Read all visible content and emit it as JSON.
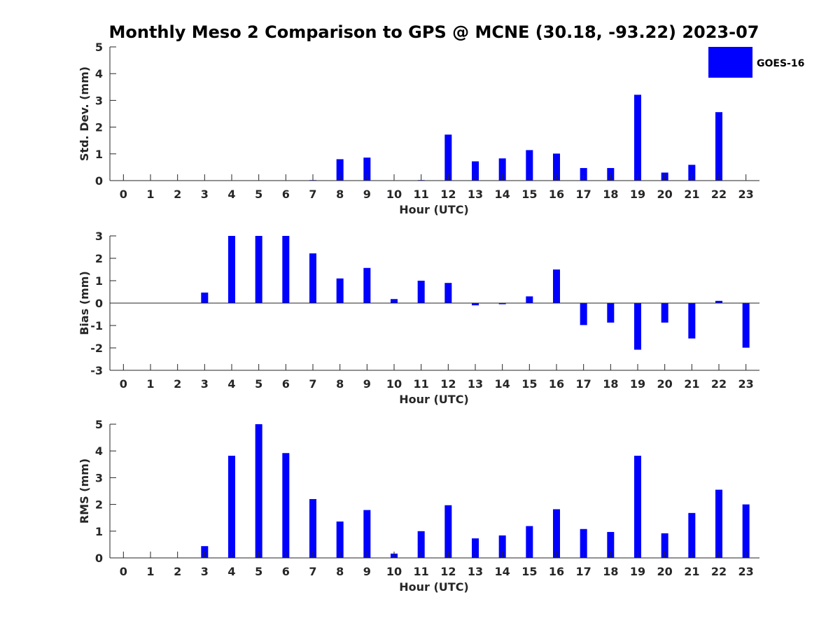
{
  "title": "Monthly Meso 2 Comparison to GPS @ MCNE (30.18, -93.22) 2023-07",
  "legend": {
    "label": "GOES-16",
    "color": "#0000ff",
    "placement": "top-right"
  },
  "colors": {
    "bar": "#0000ff",
    "axis": "#262626"
  },
  "chart_data": [
    {
      "type": "bar",
      "xlabel": "Hour (UTC)",
      "ylabel": "Std. Dev. (mm)",
      "ylim": [
        0,
        5
      ],
      "yticks": [
        0,
        1,
        2,
        3,
        4,
        5
      ],
      "x": [
        0,
        1,
        2,
        3,
        4,
        5,
        6,
        7,
        8,
        9,
        10,
        11,
        12,
        13,
        14,
        15,
        16,
        17,
        18,
        19,
        20,
        21,
        22,
        23
      ],
      "series": [
        {
          "name": "GOES-16",
          "values": [
            0,
            0,
            0,
            0,
            0,
            0,
            0,
            0.02,
            0.8,
            0.86,
            0,
            0.02,
            1.72,
            0.72,
            0.83,
            1.14,
            1.01,
            0.47,
            0.47,
            3.21,
            0.3,
            0.59,
            2.56,
            0
          ]
        }
      ]
    },
    {
      "type": "bar",
      "xlabel": "Hour (UTC)",
      "ylabel": "Bias (mm)",
      "ylim": [
        -3,
        3
      ],
      "yticks": [
        -3,
        -2,
        -1,
        0,
        1,
        2,
        3
      ],
      "x": [
        0,
        1,
        2,
        3,
        4,
        5,
        6,
        7,
        8,
        9,
        10,
        11,
        12,
        13,
        14,
        15,
        16,
        17,
        18,
        19,
        20,
        21,
        22,
        23
      ],
      "series": [
        {
          "name": "GOES-16",
          "values": [
            0,
            0,
            0,
            0.47,
            3.0,
            3.0,
            3.0,
            2.22,
            1.1,
            1.57,
            0.18,
            1.0,
            0.9,
            -0.1,
            -0.05,
            0.3,
            1.5,
            -0.98,
            -0.87,
            -2.08,
            -0.87,
            -1.58,
            0.1,
            -1.99
          ]
        }
      ]
    },
    {
      "type": "bar",
      "xlabel": "Hour (UTC)",
      "ylabel": "RMS (mm)",
      "ylim": [
        0,
        5
      ],
      "yticks": [
        0,
        1,
        2,
        3,
        4,
        5
      ],
      "x": [
        0,
        1,
        2,
        3,
        4,
        5,
        6,
        7,
        8,
        9,
        10,
        11,
        12,
        13,
        14,
        15,
        16,
        17,
        18,
        19,
        20,
        21,
        22,
        23
      ],
      "series": [
        {
          "name": "GOES-16",
          "values": [
            0,
            0,
            0,
            0.44,
            3.82,
            5.0,
            3.92,
            2.2,
            1.36,
            1.79,
            0.16,
            1.0,
            1.97,
            0.73,
            0.84,
            1.19,
            1.82,
            1.08,
            0.97,
            3.82,
            0.92,
            1.68,
            2.55,
            2.0
          ]
        }
      ]
    }
  ]
}
